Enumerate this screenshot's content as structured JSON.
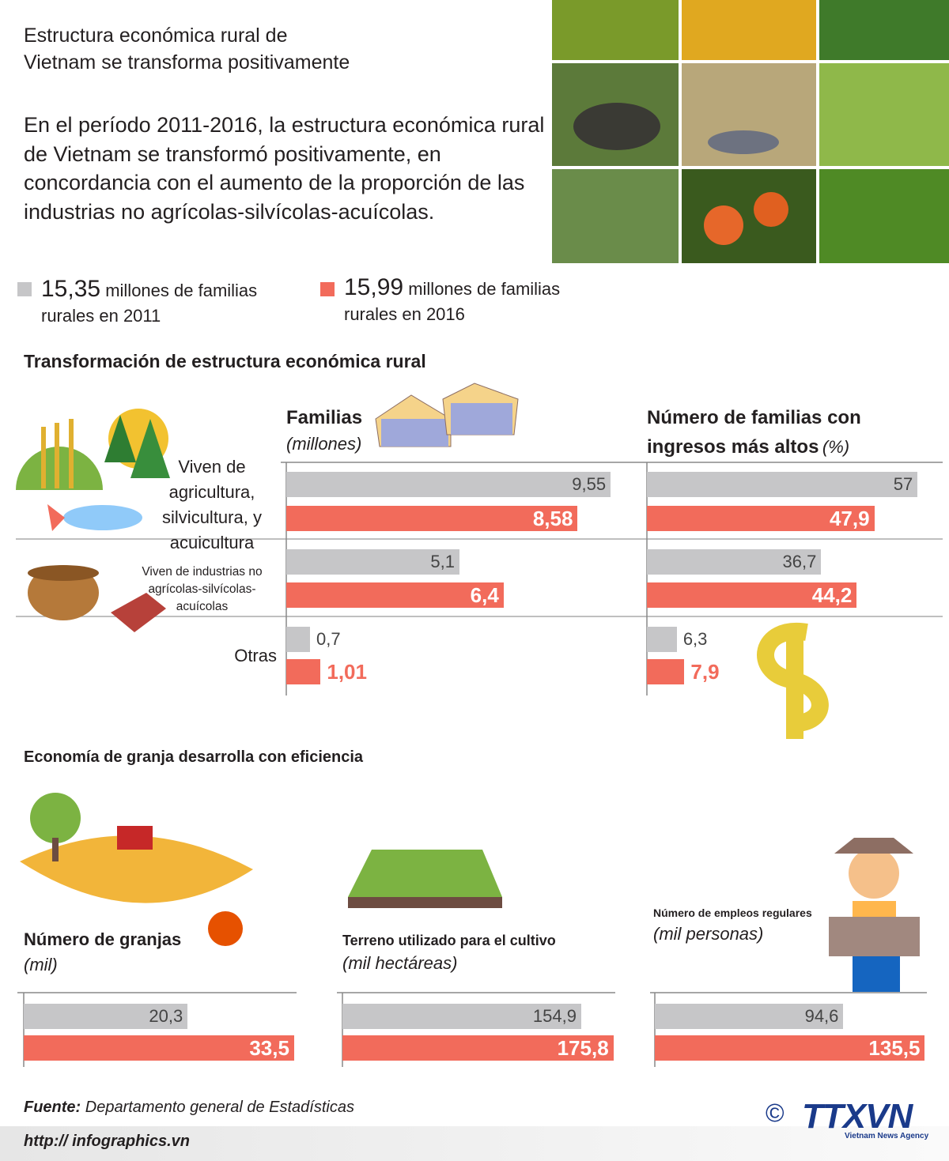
{
  "header": {
    "title_lines": [
      "Estructura económica rural de",
      "Vietnam se transforma positivamente"
    ],
    "intro_lines": [
      "En el período 2011-2016, la estructura económica rural",
      "de Vietnam se transformó positivamente,  en",
      "concordancia con el aumento de la proporción de las",
      "industrias no agrícolas-silvícolas-acuícolas."
    ]
  },
  "legend": [
    {
      "number": "15,35",
      "text": "millones de familias",
      "text2": "rurales en 2011",
      "color": "#c6c6c8"
    },
    {
      "number": "15,99",
      "text": "millones de familias",
      "text2": "rurales en 2016",
      "color": "#f26b5b"
    }
  ],
  "section1": "Transformación de estructura económica rural",
  "section2": "Economía de granja desarrolla con eficiencia",
  "chart_data": [
    {
      "type": "bar",
      "orientation": "horizontal",
      "title": "Familias",
      "subtitle": "(millones)",
      "categories": [
        "Viven de agricultura, silvicultura, y acuicultura",
        "Viven de industrias no agrícolas-silvícolas-acuícolas",
        "Otras"
      ],
      "series": [
        {
          "color": "#c6c6c8",
          "values": [
            9.55,
            5.1,
            0.7
          ],
          "value_labels": [
            "9,55",
            "5,1",
            "0,7"
          ]
        },
        {
          "color": "#f26b5b",
          "values": [
            8.58,
            6.4,
            1.01
          ],
          "value_labels": [
            "8,58",
            "6,4",
            "1,01"
          ]
        }
      ],
      "xlim": [
        0,
        10.2
      ]
    },
    {
      "type": "bar",
      "orientation": "horizontal",
      "title": "Número de familias con ingresos más altos",
      "subtitle": "(%)",
      "series": [
        {
          "color": "#c6c6c8",
          "values": [
            57,
            36.7,
            6.3
          ],
          "value_labels": [
            "57",
            "36,7",
            "6,3"
          ]
        },
        {
          "color": "#f26b5b",
          "values": [
            47.9,
            44.2,
            7.9
          ],
          "value_labels": [
            "47,9",
            "44,2",
            "7,9"
          ]
        }
      ],
      "xlim": [
        0,
        62.3
      ]
    },
    {
      "type": "bar",
      "orientation": "horizontal",
      "title": "Número de granjas",
      "subtitle": "(mil)",
      "series": [
        {
          "color": "#c6c6c8",
          "values": [
            20.3
          ],
          "value_labels": [
            "20,3"
          ]
        },
        {
          "color": "#f26b5b",
          "values": [
            33.5
          ],
          "value_labels": [
            "33,5"
          ]
        }
      ],
      "xlim": [
        0,
        33.8
      ]
    },
    {
      "type": "bar",
      "orientation": "horizontal",
      "title": "Terreno utilizado para el cultivo",
      "subtitle": "(mil hectáreas)",
      "series": [
        {
          "color": "#c6c6c8",
          "values": [
            154.9
          ],
          "value_labels": [
            "154,9"
          ]
        },
        {
          "color": "#f26b5b",
          "values": [
            175.8
          ],
          "value_labels": [
            "175,8"
          ]
        }
      ],
      "xlim": [
        0,
        177
      ]
    },
    {
      "type": "bar",
      "orientation": "horizontal",
      "title": "Número de empleos regulares",
      "subtitle": "(mil personas)",
      "series": [
        {
          "color": "#c6c6c8",
          "values": [
            94.6
          ],
          "value_labels": [
            "94,6"
          ]
        },
        {
          "color": "#f26b5b",
          "values": [
            135.5
          ],
          "value_labels": [
            "135,5"
          ]
        }
      ],
      "xlim": [
        0,
        136.5
      ]
    }
  ],
  "footer": {
    "source_label": "Fuente:",
    "source": "Departamento general  de Estadísticas",
    "url": "http:// infographics.vn",
    "copyright": "©",
    "logo": "TTXVN",
    "logo_sub": "Vietnam News Agency"
  }
}
